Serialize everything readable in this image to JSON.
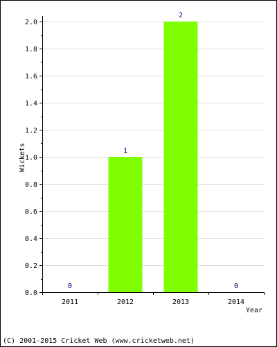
{
  "chart_data": {
    "type": "bar",
    "categories": [
      "2011",
      "2012",
      "2013",
      "2014"
    ],
    "values": [
      0,
      1,
      2,
      0
    ],
    "data_labels": [
      "0",
      "1",
      "2",
      "0"
    ],
    "xlabel": "Year",
    "ylabel": "Wickets",
    "ylim": [
      0,
      2.0
    ],
    "yticks": [
      "0.0",
      "0.2",
      "0.4",
      "0.6",
      "0.8",
      "1.0",
      "1.2",
      "1.4",
      "1.6",
      "1.8",
      "2.0"
    ],
    "grid": true,
    "bar_color": "#7fff00",
    "grid_color": "#dddddd",
    "label_color": "#000080"
  },
  "footer": {
    "credit": "(C) 2001-2015 Cricket Web (www.cricketweb.net)"
  }
}
